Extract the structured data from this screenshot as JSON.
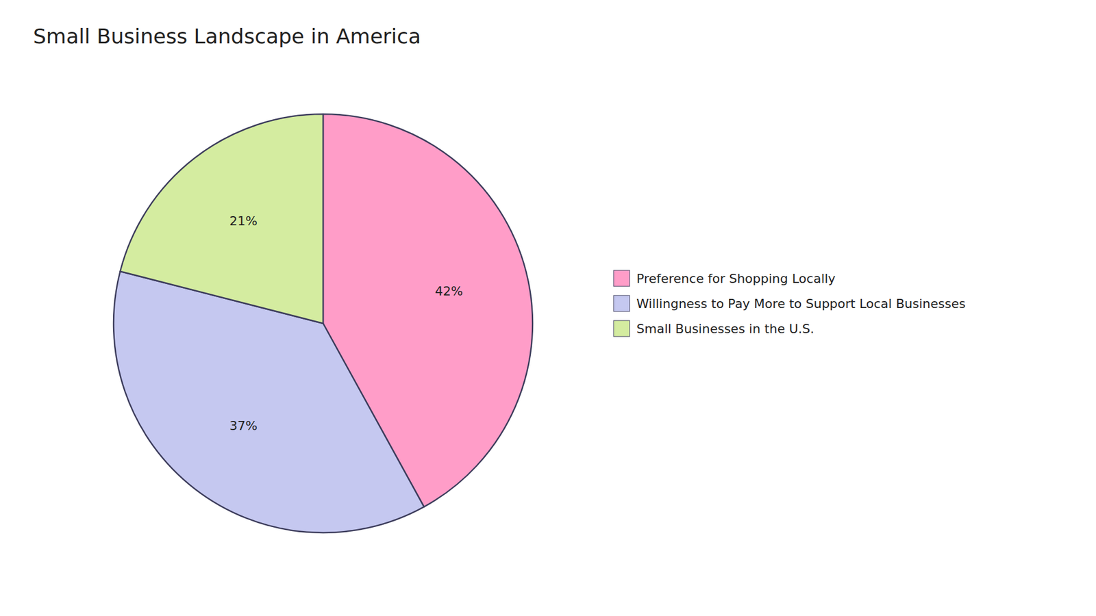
{
  "chart_data": {
    "type": "pie",
    "title": "Small Business Landscape in America",
    "categories": [
      "Preference for Shopping Locally",
      "Willingness to Pay More to Support Local Businesses",
      "Small Businesses in the U.S."
    ],
    "values": [
      42,
      37,
      21
    ],
    "value_labels": [
      "42%",
      "37%",
      "21%"
    ],
    "colors": [
      "#FF9DC8",
      "#C5C8F0",
      "#D4ECA0"
    ],
    "data_labels": true,
    "legend": "right"
  }
}
